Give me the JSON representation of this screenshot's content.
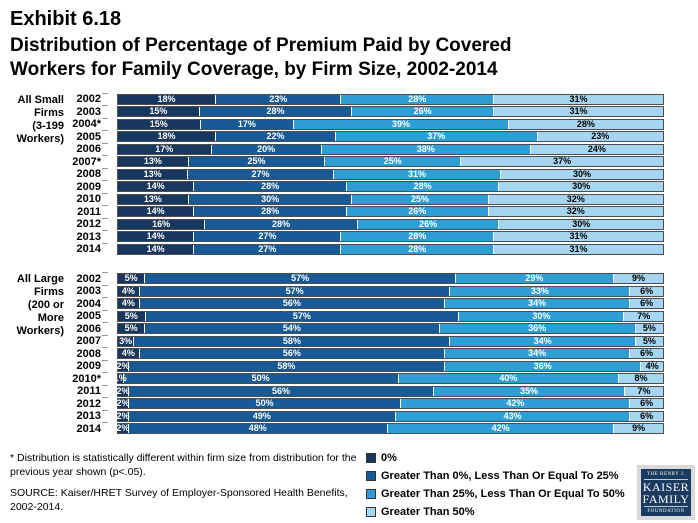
{
  "header": {
    "exhibit": "Exhibit 6.18",
    "title_line1": "Distribution of Percentage of Premium Paid by Covered",
    "title_line2": "Workers for Family Coverage, by Firm Size, 2002-2014"
  },
  "footer": {
    "footnote": "* Distribution is statistically different within firm size from distribution for the previous year shown (p<.05).",
    "source": "SOURCE:  Kaiser/HRET Survey of Employer-Sponsored Health Benefits, 2002-2014."
  },
  "legend": {
    "items": [
      {
        "label": "0%"
      },
      {
        "label": "Greater Than 0%, Less Than Or Equal To 25%"
      },
      {
        "label": "Greater Than 25%, Less Than Or Equal To 50%"
      },
      {
        "label": "Greater Than 50%"
      }
    ]
  },
  "logo": {
    "line1": "THE HENRY J.",
    "line2": "KAISER",
    "line3": "FAMILY",
    "line4": "FOUNDATION"
  },
  "chart_data": {
    "type": "bar",
    "stacked": true,
    "orientation": "horizontal",
    "unit": "%",
    "xlim": [
      0,
      100
    ],
    "series_labels": [
      "0%",
      "Greater Than 0%, Less Than Or Equal To 25%",
      "Greater Than 25%, Less Than Or Equal To 50%",
      "Greater Than 50%"
    ],
    "segment_colors": [
      "#17375E",
      "#175A96",
      "#2E9FD6",
      "#A5D5F0"
    ],
    "label_colors": [
      "#ffffff",
      "#ffffff",
      "#ffffff",
      "#000000"
    ],
    "groups": [
      {
        "label_lines": [
          "All Small",
          "Firms",
          "(3-199",
          "Workers)"
        ],
        "rows": [
          {
            "year": "2002",
            "values": [
              18,
              23,
              28,
              31
            ]
          },
          {
            "year": "2003",
            "values": [
              15,
              28,
              26,
              31
            ]
          },
          {
            "year": "2004*",
            "values": [
              15,
              17,
              39,
              28
            ]
          },
          {
            "year": "2005",
            "values": [
              18,
              22,
              37,
              23
            ]
          },
          {
            "year": "2006",
            "values": [
              17,
              20,
              38,
              24
            ]
          },
          {
            "year": "2007*",
            "values": [
              13,
              25,
              25,
              37
            ]
          },
          {
            "year": "2008",
            "values": [
              13,
              27,
              31,
              30
            ]
          },
          {
            "year": "2009",
            "values": [
              14,
              28,
              28,
              30
            ]
          },
          {
            "year": "2010",
            "values": [
              13,
              30,
              25,
              32
            ]
          },
          {
            "year": "2011",
            "values": [
              14,
              28,
              26,
              32
            ]
          },
          {
            "year": "2012",
            "values": [
              16,
              28,
              26,
              30
            ]
          },
          {
            "year": "2013",
            "values": [
              14,
              27,
              28,
              31
            ]
          },
          {
            "year": "2014",
            "values": [
              14,
              27,
              28,
              31
            ]
          }
        ]
      },
      {
        "label_lines": [
          "All Large",
          "Firms",
          "(200 or More",
          "Workers)"
        ],
        "rows": [
          {
            "year": "2002",
            "values": [
              5,
              57,
              29,
              9
            ]
          },
          {
            "year": "2003",
            "values": [
              4,
              57,
              33,
              6
            ]
          },
          {
            "year": "2004",
            "values": [
              4,
              56,
              34,
              6
            ]
          },
          {
            "year": "2005",
            "values": [
              5,
              57,
              30,
              7
            ]
          },
          {
            "year": "2006",
            "values": [
              5,
              54,
              36,
              5
            ]
          },
          {
            "year": "2007",
            "values": [
              3,
              58,
              34,
              5
            ]
          },
          {
            "year": "2008",
            "values": [
              4,
              56,
              34,
              6
            ]
          },
          {
            "year": "2009",
            "values": [
              2,
              58,
              36,
              4
            ]
          },
          {
            "year": "2010*",
            "values": [
              1,
              50,
              40,
              8
            ]
          },
          {
            "year": "2011",
            "values": [
              2,
              56,
              35,
              7
            ]
          },
          {
            "year": "2012",
            "values": [
              2,
              50,
              42,
              6
            ]
          },
          {
            "year": "2013",
            "values": [
              2,
              49,
              43,
              6
            ]
          },
          {
            "year": "2014",
            "values": [
              2,
              48,
              42,
              9
            ]
          }
        ]
      }
    ]
  }
}
